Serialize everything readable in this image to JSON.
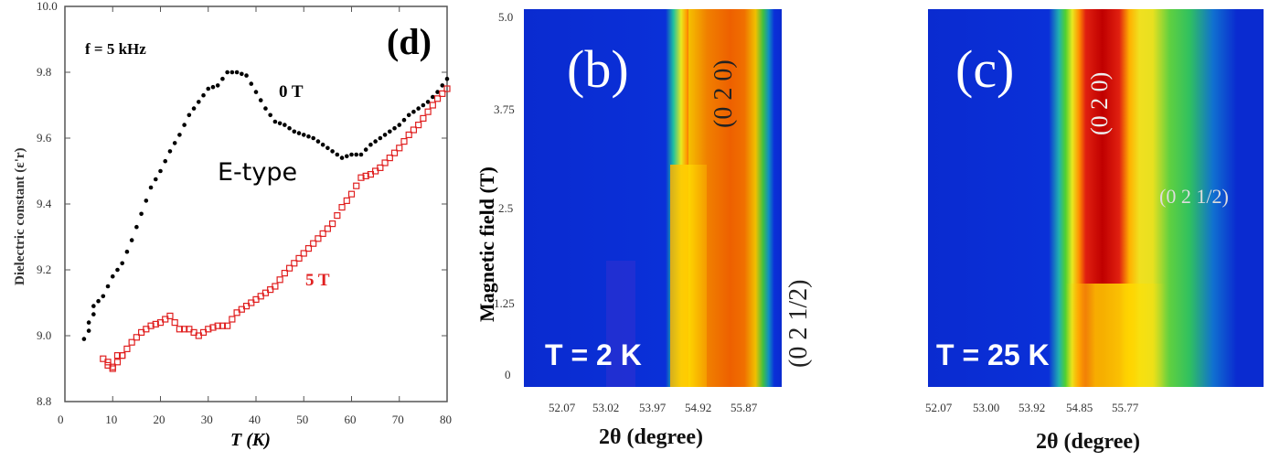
{
  "chart_data": [
    {
      "type": "scatter",
      "panel_label": "(d)",
      "annotation_freq": "f = 5 kHz",
      "annotation_phase": "E-type",
      "xlabel": "T (K)",
      "ylabel": "Dielectric constant (ε'r)",
      "xlim": [
        0,
        80
      ],
      "ylim": [
        8.8,
        10.0
      ],
      "xticks": [
        "0",
        "10",
        "20",
        "30",
        "40",
        "50",
        "60",
        "70",
        "80"
      ],
      "yticks": [
        "8.8",
        "9.0",
        "9.2",
        "9.4",
        "9.6",
        "9.8",
        "10.0"
      ],
      "series": [
        {
          "name": "0 T",
          "color": "#000000",
          "marker": "filled-circle",
          "x": [
            4,
            5,
            6,
            8,
            10,
            12,
            14,
            16,
            18,
            20,
            22,
            24,
            26,
            28,
            30,
            32,
            34,
            36,
            38,
            40,
            42,
            44,
            46,
            48,
            50,
            52,
            54,
            56,
            58,
            60,
            62,
            64,
            66,
            68,
            70,
            72,
            74,
            76,
            78,
            80
          ],
          "y": [
            8.99,
            9.04,
            9.09,
            9.12,
            9.18,
            9.22,
            9.29,
            9.37,
            9.45,
            9.5,
            9.56,
            9.61,
            9.67,
            9.71,
            9.75,
            9.76,
            9.8,
            9.8,
            9.79,
            9.74,
            9.69,
            9.65,
            9.64,
            9.62,
            9.61,
            9.6,
            9.58,
            9.56,
            9.54,
            9.55,
            9.55,
            9.58,
            9.6,
            9.62,
            9.64,
            9.67,
            9.69,
            9.71,
            9.74,
            9.78
          ]
        },
        {
          "name": "5 T",
          "color": "#e02020",
          "marker": "open-square",
          "x": [
            8,
            9,
            10,
            11,
            12,
            14,
            16,
            18,
            20,
            22,
            24,
            26,
            28,
            30,
            32,
            34,
            36,
            38,
            40,
            42,
            44,
            46,
            48,
            50,
            52,
            54,
            56,
            58,
            60,
            62,
            64,
            66,
            68,
            70,
            72,
            74,
            76,
            78,
            80
          ],
          "y": [
            8.93,
            8.91,
            8.9,
            8.94,
            8.94,
            8.98,
            9.01,
            9.03,
            9.04,
            9.06,
            9.02,
            9.02,
            9.0,
            9.02,
            9.03,
            9.03,
            9.07,
            9.09,
            9.11,
            9.13,
            9.15,
            9.19,
            9.22,
            9.25,
            9.28,
            9.31,
            9.34,
            9.39,
            9.43,
            9.48,
            9.49,
            9.51,
            9.54,
            9.57,
            9.61,
            9.64,
            9.68,
            9.72,
            9.75
          ]
        }
      ]
    },
    {
      "type": "heatmap",
      "panel_label": "(b)",
      "temperature": "T = 2 K",
      "ylabel": "Magnetic field (T)",
      "xlabel": "2θ (degree)",
      "yticks": [
        "5.0",
        "3.75",
        "2.5",
        "1.25",
        "0"
      ],
      "xticks": [
        "52.07",
        "53.02",
        "53.97",
        "54.92",
        "55.87"
      ],
      "peaks": [
        "(0 2 0)",
        "(0 2 1/2)"
      ]
    },
    {
      "type": "heatmap",
      "panel_label": "(c)",
      "temperature": "T = 25 K",
      "xlabel": "2θ (degree)",
      "xticks": [
        "52.07",
        "53.00",
        "53.92",
        "54.85",
        "55.77"
      ],
      "peaks": [
        "(0 2 0)",
        "(0 2 1/2)"
      ]
    }
  ]
}
